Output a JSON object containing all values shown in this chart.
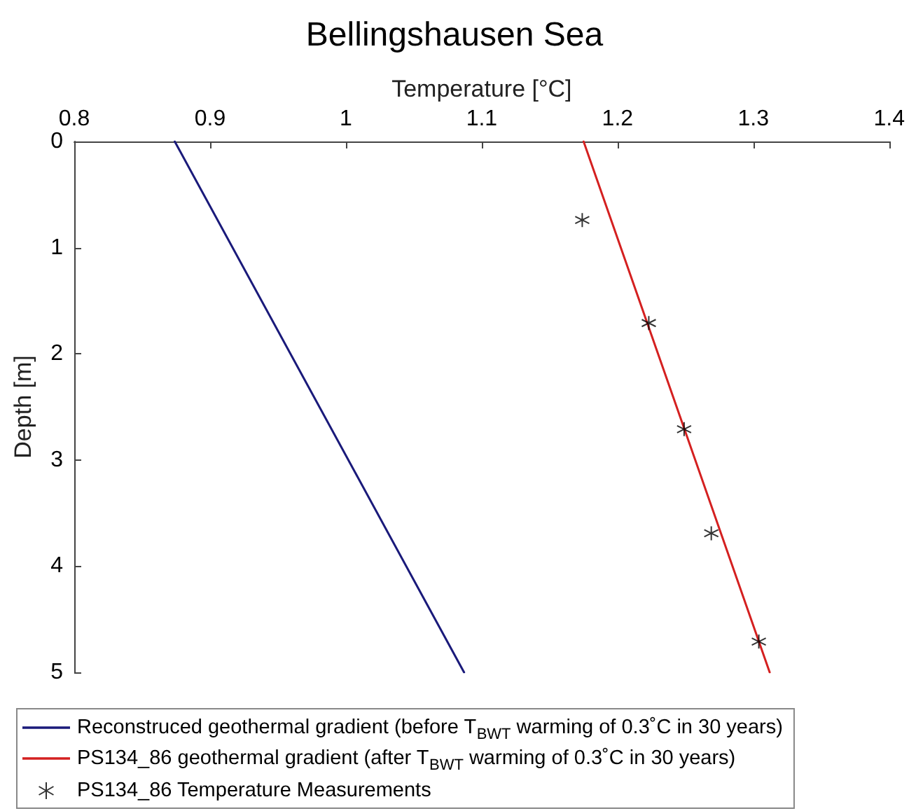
{
  "chart_data": {
    "type": "line",
    "title": "Bellingshausen Sea",
    "xlabel": "Temperature [°C]",
    "ylabel": "Depth [m]",
    "xlim": [
      0.8,
      1.4
    ],
    "xticks": [
      0.8,
      0.9,
      1,
      1.1,
      1.2,
      1.3,
      1.4
    ],
    "ylim": [
      5,
      0
    ],
    "yticks": [
      0,
      1,
      2,
      3,
      4,
      5
    ],
    "grid": false,
    "legend": "bottom",
    "series": [
      {
        "name": "Reconstruced geothermal gradient (before T$_{BWT}$ warming of 0.3˚C in 30 years)",
        "color": "#1a1a7a",
        "x": [
          0.874,
          1.087
        ],
        "values": [
          0,
          5
        ],
        "marker": "none",
        "line_style": "solid"
      },
      {
        "name": "PS134_86 geothermal gradient (after T$_{BWT}$ warming of 0.3˚C in 30 years)",
        "color": "#d42020",
        "x": [
          1.175,
          1.312
        ],
        "values": [
          0,
          5
        ],
        "marker": "none",
        "line_style": "solid"
      },
      {
        "name": "PS134_86 Temperature Measurements",
        "type": "scatter",
        "color": "#000000",
        "x": [
          1.174,
          1.223,
          1.249,
          1.269,
          1.304
        ],
        "values": [
          0.74,
          1.71,
          2.71,
          3.69,
          4.71
        ],
        "marker": "cross"
      }
    ]
  }
}
